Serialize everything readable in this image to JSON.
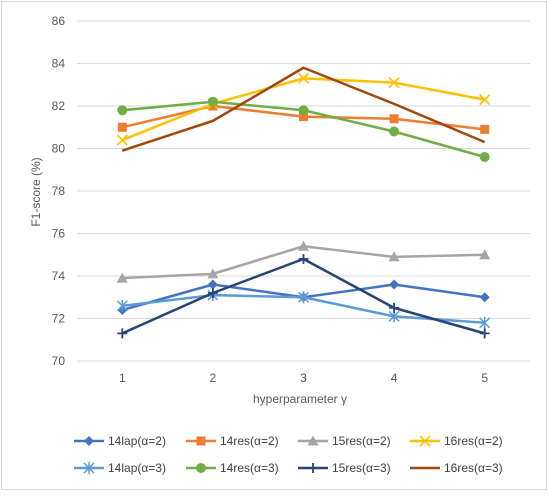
{
  "chart_data": {
    "type": "line",
    "title": "",
    "xlabel": "hyperparameter  γ",
    "ylabel": "F1-score  (%)",
    "categories": [
      "1",
      "2",
      "3",
      "4",
      "5"
    ],
    "ylim": [
      70,
      86
    ],
    "yticks": [
      "70",
      "72",
      "74",
      "76",
      "78",
      "80",
      "82",
      "84",
      "86"
    ],
    "grid": "horizontal",
    "legend_position": "bottom",
    "series": [
      {
        "name": "14lap(α=2)",
        "values": [
          72.4,
          73.6,
          73.0,
          73.6,
          73.0
        ],
        "color": "#4472c4",
        "marker": "diamond"
      },
      {
        "name": "14res(α=2)",
        "values": [
          81.0,
          82.0,
          81.5,
          81.4,
          80.9
        ],
        "color": "#ed7d31",
        "marker": "square"
      },
      {
        "name": "15res(α=2)",
        "values": [
          73.9,
          74.1,
          75.4,
          74.9,
          75.0
        ],
        "color": "#a5a5a5",
        "marker": "triangle"
      },
      {
        "name": "16res(α=2)",
        "values": [
          80.4,
          82.1,
          83.3,
          83.1,
          82.3
        ],
        "color": "#ffc000",
        "marker": "x"
      },
      {
        "name": "14lap(α=3)",
        "values": [
          72.6,
          73.1,
          73.0,
          72.1,
          71.8
        ],
        "color": "#5b9bd5",
        "marker": "star"
      },
      {
        "name": "14res(α=3)",
        "values": [
          81.8,
          82.2,
          81.8,
          80.8,
          79.6
        ],
        "color": "#70ad47",
        "marker": "circle"
      },
      {
        "name": "15res(α=3)",
        "values": [
          71.3,
          73.2,
          74.8,
          72.5,
          71.3
        ],
        "color": "#264478",
        "marker": "plus"
      },
      {
        "name": "16res(α=3)",
        "values": [
          79.9,
          81.3,
          83.8,
          82.1,
          80.3
        ],
        "color": "#9e480e",
        "marker": "none"
      }
    ]
  }
}
